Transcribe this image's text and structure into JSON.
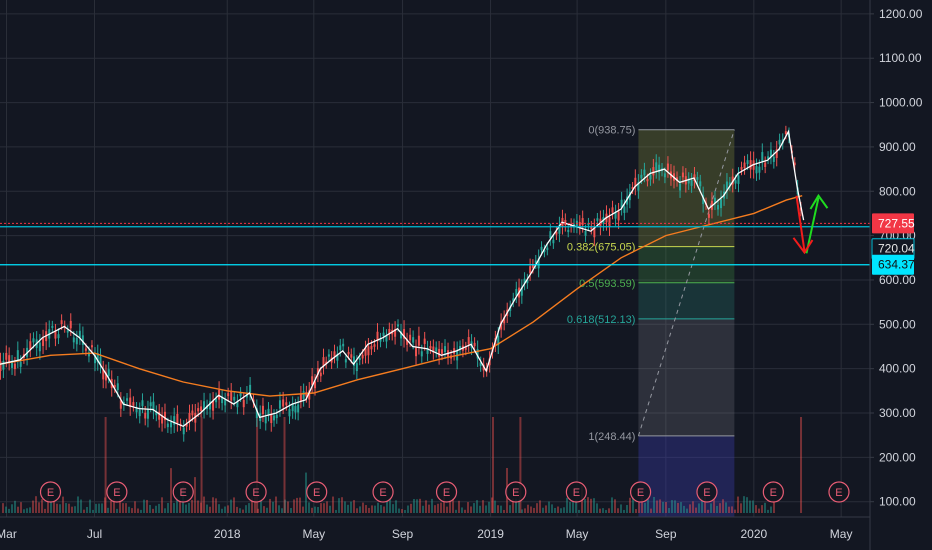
{
  "chart_data": {
    "type": "candlestick",
    "ylim": [
      70,
      1220
    ],
    "y_ticks": [
      "1200.00",
      "1100.00",
      "1000.00",
      "900.00",
      "800.00",
      "700.00",
      "600.00",
      "500.00",
      "400.00",
      "300.00",
      "200.00",
      "100.00"
    ],
    "y_tick_values": [
      1200,
      1100,
      1000,
      900,
      800,
      700,
      600,
      500,
      400,
      300,
      200,
      100
    ],
    "x_ticks": [
      "Mar",
      "Jul",
      "2018",
      "May",
      "Sep",
      "2019",
      "May",
      "Sep",
      "2020",
      "May"
    ],
    "x_tick_dates": [
      "2017-03-01",
      "2017-07-01",
      "2018-01-01",
      "2018-05-01",
      "2018-09-01",
      "2019-01-01",
      "2019-05-01",
      "2019-09-01",
      "2020-01-01",
      "2020-05-01"
    ],
    "x_range": [
      "2017-02-20",
      "2020-06-10"
    ],
    "grid": true,
    "price_series": {
      "name": "",
      "color": "#ffffff",
      "dates": [
        "2017-02-20",
        "2017-03-20",
        "2017-04-20",
        "2017-05-20",
        "2017-06-10",
        "2017-07-01",
        "2017-07-20",
        "2017-08-10",
        "2017-09-01",
        "2017-09-20",
        "2017-10-10",
        "2017-11-01",
        "2017-11-25",
        "2017-12-20",
        "2018-01-10",
        "2018-02-01",
        "2018-02-15",
        "2018-03-10",
        "2018-04-01",
        "2018-04-20",
        "2018-05-10",
        "2018-05-25",
        "2018-06-10",
        "2018-06-25",
        "2018-07-15",
        "2018-08-05",
        "2018-08-25",
        "2018-09-15",
        "2018-10-05",
        "2018-10-25",
        "2018-11-15",
        "2018-12-05",
        "2018-12-26",
        "2019-01-15",
        "2019-02-05",
        "2019-02-28",
        "2019-03-20",
        "2019-04-10",
        "2019-04-30",
        "2019-05-20",
        "2019-06-10",
        "2019-07-01",
        "2019-07-20",
        "2019-08-10",
        "2019-08-30",
        "2019-09-20",
        "2019-10-10",
        "2019-10-30",
        "2019-11-20",
        "2019-12-10",
        "2019-12-31",
        "2020-01-20",
        "2020-02-05",
        "2020-02-18",
        "2020-03-01",
        "2020-03-10"
      ],
      "values": [
        410,
        420,
        470,
        495,
        470,
        430,
        380,
        320,
        310,
        308,
        285,
        270,
        300,
        340,
        320,
        345,
        290,
        300,
        320,
        330,
        400,
        420,
        440,
        410,
        455,
        470,
        490,
        450,
        445,
        430,
        440,
        455,
        395,
        500,
        560,
        620,
        680,
        730,
        720,
        710,
        740,
        760,
        810,
        840,
        850,
        820,
        830,
        760,
        790,
        840,
        860,
        870,
        895,
        935,
        810,
        735
      ]
    },
    "moving_average": {
      "name": "",
      "color": "#f57c1f",
      "dates": [
        "2017-02-20",
        "2017-05-01",
        "2017-07-01",
        "2017-09-01",
        "2017-11-01",
        "2018-01-01",
        "2018-03-01",
        "2018-05-01",
        "2018-07-01",
        "2018-09-01",
        "2018-11-01",
        "2019-01-01",
        "2019-03-01",
        "2019-05-01",
        "2019-07-01",
        "2019-09-01",
        "2019-11-01",
        "2020-01-01",
        "2020-02-15",
        "2020-03-08"
      ],
      "values": [
        410,
        430,
        435,
        400,
        370,
        350,
        338,
        345,
        375,
        400,
        425,
        445,
        505,
        580,
        650,
        700,
        725,
        750,
        780,
        790
      ]
    },
    "volume_events_count": 13,
    "levels": [
      {
        "price": 727.55,
        "label": "727.55",
        "color": "#f23645"
      },
      {
        "price": 720.04,
        "label": "720.04",
        "color": "#00bcd4"
      },
      {
        "price": 634.37,
        "label": "634.37",
        "color": "#00e5ff"
      }
    ],
    "fibonacci": {
      "high": 938.75,
      "low": 248.44,
      "levels": [
        {
          "ratio": "0",
          "price": 938.75,
          "label": "0(938.75)",
          "color": "#9598a1"
        },
        {
          "ratio": "0.382",
          "price": 675.05,
          "label": "0.382(675.05)",
          "color": "#c8d84f"
        },
        {
          "ratio": "0.5",
          "price": 593.59,
          "label": "0.5(593.59)",
          "color": "#4caf50"
        },
        {
          "ratio": "0.618",
          "price": 512.13,
          "label": "0.618(512.13)",
          "color": "#26a69a"
        },
        {
          "ratio": "1",
          "price": 248.44,
          "label": "1(248.44)",
          "color": "#9598a1"
        }
      ]
    },
    "event_marker_label": "E",
    "event_dates": [
      "2017-05-01",
      "2017-08-01",
      "2017-11-01",
      "2018-02-10",
      "2018-05-05",
      "2018-08-05",
      "2018-11-01",
      "2019-02-05",
      "2019-04-30",
      "2019-07-28",
      "2019-10-28",
      "2020-01-28",
      "2020-04-28"
    ],
    "arrows": [
      {
        "direction": "up",
        "color": "#1fdc1f"
      },
      {
        "direction": "down",
        "color": "#f21c1c"
      }
    ]
  }
}
